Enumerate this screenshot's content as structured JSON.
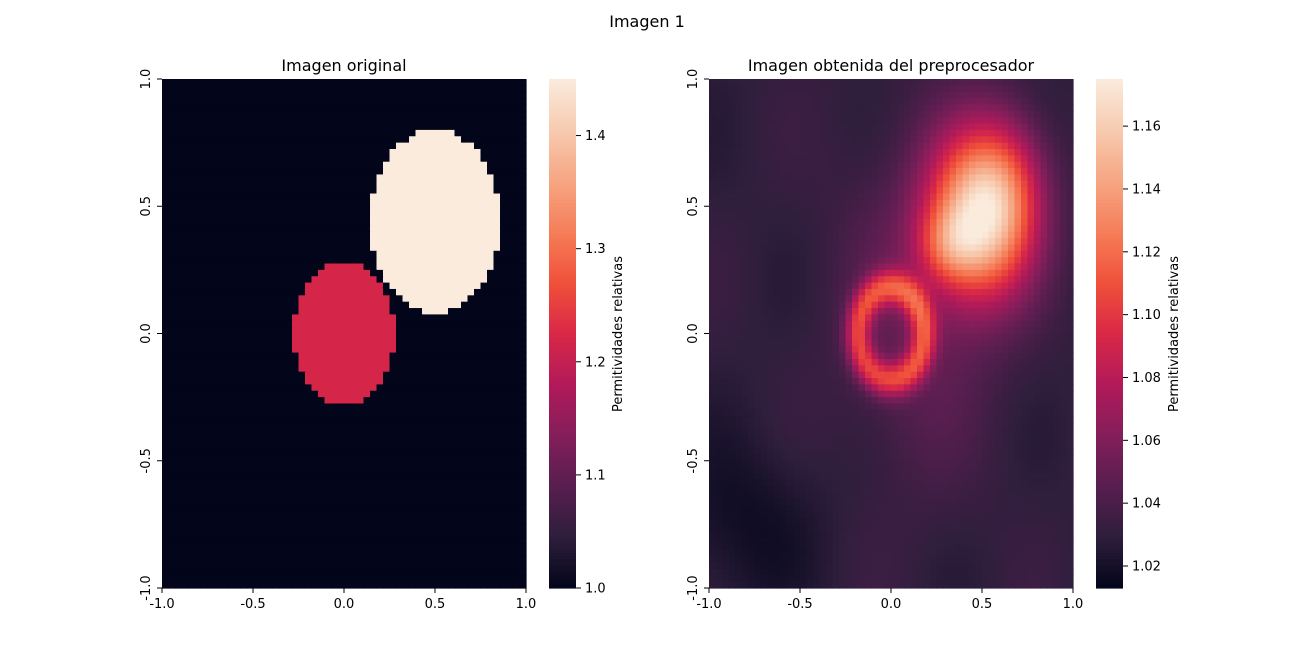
{
  "figure": {
    "suptitle": "Imagen 1"
  },
  "colormap": {
    "name": "rocket",
    "stops": [
      "#03051a",
      "#2e1e3c",
      "#581e4f",
      "#841e5a",
      "#b21a5a",
      "#d92847",
      "#f0513a",
      "#f57e59",
      "#f6a683",
      "#f7cbb0",
      "#faebdd"
    ]
  },
  "chart_data": [
    {
      "type": "heatmap",
      "title": "Imagen original",
      "xlim": [
        -1.0,
        1.0
      ],
      "ylim": [
        -1.0,
        1.0
      ],
      "x_ticks": [
        -1.0,
        -0.5,
        0.0,
        0.5,
        1.0
      ],
      "x_tick_labels": [
        "-1.0",
        "-0.5",
        "0.0",
        "0.5",
        "1.0"
      ],
      "y_ticks": [
        1.0,
        0.5,
        0.0,
        -0.5,
        -1.0
      ],
      "y_tick_labels": [
        "1.0",
        "0.5",
        "0.0",
        "-0.5",
        "-1.0"
      ],
      "grid": [
        56,
        80
      ],
      "background_value": 1.0,
      "regions": [
        {
          "shape": "ellipse",
          "center": [
            0.5,
            0.44
          ],
          "radii": [
            0.36,
            0.36
          ],
          "value": 1.45
        },
        {
          "shape": "ellipse",
          "center": [
            0.0,
            0.0
          ],
          "radii": [
            0.28,
            0.28
          ],
          "value": 1.22
        }
      ],
      "colorbar": {
        "label": "Permitividades relativas",
        "range": [
          1.0,
          1.45
        ],
        "ticks": [
          1.0,
          1.1,
          1.2,
          1.3,
          1.4
        ],
        "tick_labels": [
          "1.0",
          "1.1",
          "1.2",
          "1.3",
          "1.4"
        ]
      }
    },
    {
      "type": "heatmap",
      "title": "Imagen obtenida del preprocesador",
      "xlim": [
        -1.0,
        1.0
      ],
      "ylim": [
        -1.0,
        1.0
      ],
      "x_ticks": [
        -1.0,
        -0.5,
        0.0,
        0.5,
        1.0
      ],
      "x_tick_labels": [
        "-1.0",
        "-0.5",
        "0.0",
        "0.5",
        "1.0"
      ],
      "y_ticks": [
        1.0,
        0.5,
        0.0,
        -0.5,
        -1.0
      ],
      "y_tick_labels": [
        "1.0",
        "0.5",
        "0.0",
        "-0.5",
        "-1.0"
      ],
      "grid": [
        56,
        80
      ],
      "background_value": 1.03,
      "components": [
        {
          "center": [
            0.5,
            0.47
          ],
          "sigma": [
            0.2,
            0.23
          ],
          "amplitude": 0.13
        },
        {
          "center": [
            0.32,
            0.35
          ],
          "sigma": [
            0.12,
            0.1
          ],
          "amplitude": 0.035
        },
        {
          "center": [
            0.65,
            0.6
          ],
          "sigma": [
            0.14,
            0.18
          ],
          "amplitude": 0.02
        },
        {
          "center": [
            0.0,
            0.0
          ],
          "ring_radius": 0.18,
          "ring_width": 0.07,
          "amplitude": 0.065
        },
        {
          "center": [
            0.15,
            0.1
          ],
          "sigma": [
            0.3,
            0.45
          ],
          "amplitude": 0.02
        },
        {
          "center": [
            -0.8,
            -0.75
          ],
          "sigma": [
            0.3,
            0.25
          ],
          "amplitude": -0.012
        }
      ],
      "colorbar": {
        "label": "Permitividades relativas",
        "range": [
          1.013,
          1.175
        ],
        "ticks": [
          1.02,
          1.04,
          1.06,
          1.08,
          1.1,
          1.12,
          1.14,
          1.16
        ],
        "tick_labels": [
          "1.02",
          "1.04",
          "1.06",
          "1.08",
          "1.10",
          "1.12",
          "1.14",
          "1.16"
        ]
      }
    }
  ]
}
